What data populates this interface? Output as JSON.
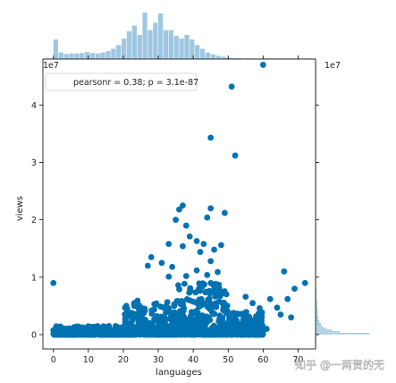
{
  "chart_data": {
    "type": "scatter",
    "title": "",
    "xlabel": "languages",
    "ylabel": "views",
    "y_scale_label": "1e7",
    "xlim": [
      -3,
      75
    ],
    "ylim": [
      -2.5,
      48
    ],
    "xticks": [
      0,
      10,
      20,
      30,
      40,
      50,
      60,
      70
    ],
    "yticks": [
      0,
      1,
      2,
      3,
      4
    ],
    "y_multiplier": 10000000,
    "legend": {
      "text": "pearsonr = 0.38; p = 3.1e-87",
      "position": "upper-left"
    },
    "colors": {
      "points": "#0072b2",
      "hist": "#9fc7e1",
      "axes": "#000000"
    },
    "outlier_points_1e6": [
      [
        60,
        47
      ],
      [
        51,
        43.2
      ],
      [
        45,
        34.3
      ],
      [
        52,
        31.2
      ],
      [
        37,
        22.5
      ],
      [
        45,
        22
      ],
      [
        49,
        21.2
      ],
      [
        36,
        21.8
      ],
      [
        44,
        20.4
      ],
      [
        35,
        20
      ],
      [
        38,
        19
      ],
      [
        39,
        17.1
      ],
      [
        41,
        16.3
      ],
      [
        43,
        15.8
      ],
      [
        48,
        15.6
      ],
      [
        46,
        14.8
      ],
      [
        33,
        15.8
      ],
      [
        37,
        15.4
      ],
      [
        42,
        14.4
      ],
      [
        45,
        12.8
      ],
      [
        28,
        13.5
      ],
      [
        27,
        12
      ],
      [
        31,
        12.5
      ],
      [
        34,
        11.8
      ],
      [
        41,
        11.2
      ],
      [
        44,
        10.4
      ],
      [
        47,
        10.9
      ],
      [
        33,
        10.1
      ],
      [
        38,
        10.2
      ],
      [
        66,
        11
      ],
      [
        0,
        9
      ],
      [
        72,
        9
      ],
      [
        69,
        8
      ],
      [
        62,
        6.2
      ],
      [
        67,
        6.2
      ],
      [
        55,
        6.6
      ],
      [
        57,
        5.5
      ],
      [
        64,
        4.7
      ],
      [
        59,
        4.6
      ],
      [
        53,
        3.6
      ],
      [
        56,
        3.1
      ],
      [
        65,
        3.5
      ],
      [
        68,
        3
      ],
      [
        61,
        1
      ]
    ],
    "dense_band": {
      "description_ranges": [
        {
          "x_range": [
            0,
            20
          ],
          "y_max_1e6": 1.5
        },
        {
          "x_range": [
            20,
            35
          ],
          "y_max_1e6": 6
        },
        {
          "x_range": [
            35,
            50
          ],
          "y_max_1e6": 9
        },
        {
          "x_range": [
            50,
            60
          ],
          "y_max_1e6": 4
        }
      ]
    },
    "x_histogram": [
      {
        "bin": [
          0,
          1.5
        ],
        "h": 0.42
      },
      {
        "bin": [
          1.5,
          3
        ],
        "h": 0.14
      },
      {
        "bin": [
          3,
          4.5
        ],
        "h": 0.11
      },
      {
        "bin": [
          4.5,
          6
        ],
        "h": 0.12
      },
      {
        "bin": [
          6,
          7.5
        ],
        "h": 0.12
      },
      {
        "bin": [
          7.5,
          9
        ],
        "h": 0.13
      },
      {
        "bin": [
          9,
          10.5
        ],
        "h": 0.15
      },
      {
        "bin": [
          10.5,
          12
        ],
        "h": 0.13
      },
      {
        "bin": [
          12,
          13.5
        ],
        "h": 0.12
      },
      {
        "bin": [
          13.5,
          15
        ],
        "h": 0.14
      },
      {
        "bin": [
          15,
          16.5
        ],
        "h": 0.17
      },
      {
        "bin": [
          16.5,
          18
        ],
        "h": 0.22
      },
      {
        "bin": [
          18,
          19.5
        ],
        "h": 0.3
      },
      {
        "bin": [
          19.5,
          21
        ],
        "h": 0.44
      },
      {
        "bin": [
          21,
          22.5
        ],
        "h": 0.6
      },
      {
        "bin": [
          22.5,
          24
        ],
        "h": 0.72
      },
      {
        "bin": [
          24,
          25.5
        ],
        "h": 0.52
      },
      {
        "bin": [
          25.5,
          27
        ],
        "h": 1.0
      },
      {
        "bin": [
          27,
          28.5
        ],
        "h": 0.62
      },
      {
        "bin": [
          28.5,
          30
        ],
        "h": 0.78
      },
      {
        "bin": [
          30,
          31.5
        ],
        "h": 0.98
      },
      {
        "bin": [
          31.5,
          33
        ],
        "h": 0.62
      },
      {
        "bin": [
          33,
          34.5
        ],
        "h": 0.62
      },
      {
        "bin": [
          34.5,
          36
        ],
        "h": 0.5
      },
      {
        "bin": [
          36,
          37.5
        ],
        "h": 0.44
      },
      {
        "bin": [
          37.5,
          39
        ],
        "h": 0.52
      },
      {
        "bin": [
          39,
          40.5
        ],
        "h": 0.42
      },
      {
        "bin": [
          40.5,
          42
        ],
        "h": 0.3
      },
      {
        "bin": [
          42,
          43.5
        ],
        "h": 0.22
      },
      {
        "bin": [
          43.5,
          45
        ],
        "h": 0.14
      },
      {
        "bin": [
          45,
          46.5
        ],
        "h": 0.1
      },
      {
        "bin": [
          46.5,
          48
        ],
        "h": 0.07
      },
      {
        "bin": [
          48,
          49.5
        ],
        "h": 0.05
      },
      {
        "bin": [
          49.5,
          51
        ],
        "h": 0.03
      },
      {
        "bin": [
          51,
          54
        ],
        "h": 0.02
      }
    ],
    "y_histogram": [
      {
        "bin_1e6": [
          0,
          0.3
        ],
        "w": 1.0
      },
      {
        "bin_1e6": [
          0.3,
          0.6
        ],
        "w": 0.45
      },
      {
        "bin_1e6": [
          0.6,
          0.9
        ],
        "w": 0.3
      },
      {
        "bin_1e6": [
          0.9,
          1.2
        ],
        "w": 0.2
      },
      {
        "bin_1e6": [
          1.2,
          1.5
        ],
        "w": 0.14
      },
      {
        "bin_1e6": [
          1.5,
          2.0
        ],
        "w": 0.1
      },
      {
        "bin_1e6": [
          2.0,
          2.6
        ],
        "w": 0.07
      },
      {
        "bin_1e6": [
          2.6,
          3.4
        ],
        "w": 0.05
      },
      {
        "bin_1e6": [
          3.4,
          4.6
        ],
        "w": 0.04
      },
      {
        "bin_1e6": [
          4.6,
          6.0
        ],
        "w": 0.03
      },
      {
        "bin_1e6": [
          6.0,
          8.0
        ],
        "w": 0.02
      }
    ]
  },
  "watermark": {
    "text": "知乎 @一两贺的无"
  }
}
